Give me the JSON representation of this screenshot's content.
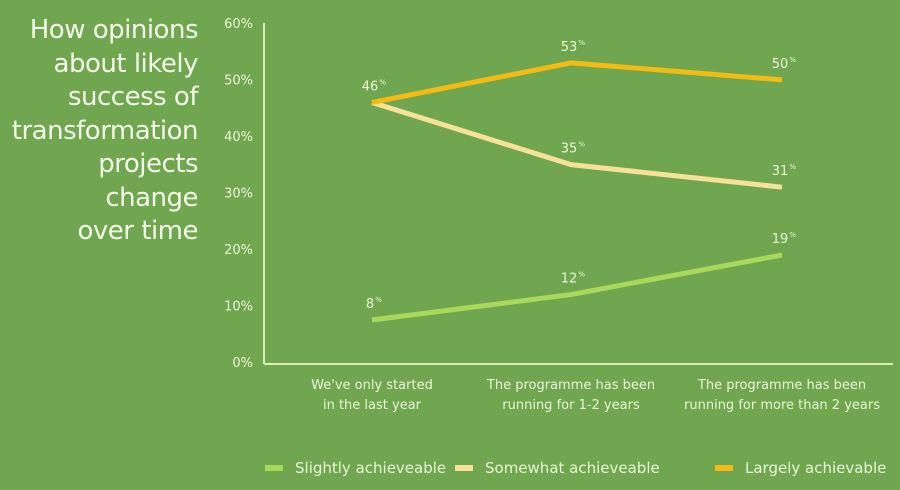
{
  "title": "How opinions about likely success of transformation projects change over time",
  "title_lines": [
    "How opinions",
    "about likely",
    "success of",
    "transformation",
    "projects change",
    "over time"
  ],
  "colors": {
    "background": "#6fa64f",
    "axis": "#d8f0b8",
    "text": "#eaf6d8",
    "slightly": "#a8d95a",
    "somewhat": "#f7e19a",
    "largely": "#f4bb14"
  },
  "chart_data": {
    "type": "line",
    "title": "How opinions about likely success of transformation projects change over time",
    "xlabel": "",
    "ylabel": "",
    "ylim": [
      0,
      60
    ],
    "yticks": [
      0,
      10,
      20,
      30,
      40,
      50,
      60
    ],
    "ytick_labels": [
      "0%",
      "10%",
      "20%",
      "30%",
      "40%",
      "50%",
      "60%"
    ],
    "grid": false,
    "legend_position": "bottom",
    "categories": [
      [
        "We've only started",
        "in the last year"
      ],
      [
        "The programme has been",
        "running for 1-2 years"
      ],
      [
        "The programme has been",
        "running for more than 2 years"
      ]
    ],
    "series": [
      {
        "name": "Slightly achieveable",
        "color_key": "slightly",
        "values": [
          8,
          12,
          19
        ],
        "labels": [
          "8",
          "12",
          "19"
        ],
        "plot_values": [
          8.5,
          13,
          20
        ]
      },
      {
        "name": "Somewhat achieveable",
        "color_key": "somewhat",
        "values": [
          46,
          35,
          31
        ],
        "labels": [
          "",
          "35",
          "31"
        ],
        "plot_values": [
          47,
          36,
          32
        ]
      },
      {
        "name": "Largely achievable",
        "color_key": "largely",
        "values": [
          46,
          53,
          50
        ],
        "labels": [
          "46",
          "53",
          "50"
        ],
        "plot_values": [
          47,
          54,
          51
        ]
      }
    ],
    "label_suffix": "%"
  }
}
